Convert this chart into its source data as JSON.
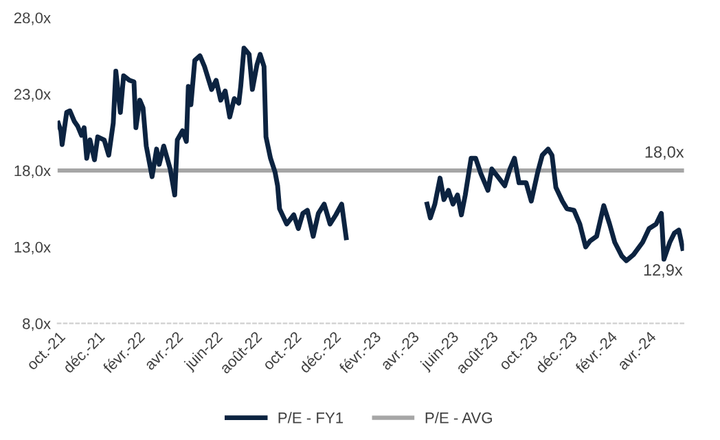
{
  "chart_data": {
    "type": "line",
    "series": [
      {
        "name": "P/E - FY1",
        "color": "#0c2340",
        "x": [
          "2021-10-01",
          "2021-10-05",
          "2021-10-07",
          "2021-10-14",
          "2021-10-19",
          "2021-10-26",
          "2021-10-31",
          "2021-11-06",
          "2021-11-10",
          "2021-11-14",
          "2021-11-19",
          "2021-11-26",
          "2021-12-01",
          "2021-12-11",
          "2021-12-18",
          "2021-12-25",
          "2021-12-29",
          "2022-01-05",
          "2022-01-10",
          "2022-01-19",
          "2022-01-26",
          "2022-01-29",
          "2022-02-04",
          "2022-02-09",
          "2022-02-14",
          "2022-02-23",
          "2022-03-02",
          "2022-03-06",
          "2022-03-13",
          "2022-03-23",
          "2022-03-30",
          "2022-04-03",
          "2022-04-11",
          "2022-04-17",
          "2022-04-20",
          "2022-04-24",
          "2022-04-30",
          "2022-05-08",
          "2022-05-15",
          "2022-05-26",
          "2022-06-02",
          "2022-06-09",
          "2022-06-16",
          "2022-06-23",
          "2022-06-30",
          "2022-07-07",
          "2022-07-10",
          "2022-07-15",
          "2022-07-23",
          "2022-07-28",
          "2022-08-04",
          "2022-08-09",
          "2022-08-15",
          "2022-08-18",
          "2022-08-25",
          "2022-09-01",
          "2022-09-05",
          "2022-09-08",
          "2022-09-19",
          "2022-09-30",
          "2022-10-07",
          "2022-10-14",
          "2022-10-21",
          "2022-10-30",
          "2022-11-07",
          "2022-11-16",
          "2022-11-25",
          "2022-12-04",
          "2022-12-13",
          "2022-12-20",
          "2023-02-15",
          "2023-04-24",
          "2023-04-29",
          "2023-05-06",
          "2023-05-14",
          "2023-05-20",
          "2023-05-27",
          "2023-06-03",
          "2023-06-10",
          "2023-06-16",
          "2023-06-22",
          "2023-07-01",
          "2023-07-08",
          "2023-07-16",
          "2023-07-27",
          "2023-08-02",
          "2023-08-13",
          "2023-08-22",
          "2023-08-30",
          "2023-09-06",
          "2023-09-13",
          "2023-09-24",
          "2023-10-02",
          "2023-10-12",
          "2023-10-19",
          "2023-10-28",
          "2023-11-03",
          "2023-11-09",
          "2023-11-19",
          "2023-11-26",
          "2023-12-07",
          "2023-12-16",
          "2023-12-25",
          "2024-01-01",
          "2024-01-11",
          "2024-01-22",
          "2024-01-31",
          "2024-02-08",
          "2024-02-19",
          "2024-02-26",
          "2024-03-08",
          "2024-03-22",
          "2024-04-01",
          "2024-04-12",
          "2024-04-20",
          "2024-04-24",
          "2024-05-03",
          "2024-05-10",
          "2024-05-17",
          "2024-05-23"
        ],
        "values": [
          21.1,
          20.6,
          19.7,
          21.8,
          21.9,
          21.2,
          20.9,
          20.3,
          20.8,
          18.8,
          20.0,
          18.7,
          20.2,
          20.0,
          19.0,
          21.1,
          24.5,
          21.8,
          24.2,
          23.9,
          23.8,
          20.8,
          22.6,
          22.1,
          19.6,
          17.6,
          19.4,
          18.4,
          19.6,
          18.1,
          16.4,
          20.0,
          20.6,
          19.9,
          23.5,
          22.3,
          25.2,
          25.5,
          24.8,
          23.3,
          23.9,
          22.6,
          23.2,
          21.5,
          22.7,
          22.4,
          23.5,
          26.0,
          25.6,
          23.3,
          24.9,
          25.6,
          24.8,
          20.2,
          18.8,
          17.9,
          17.0,
          15.5,
          14.5,
          15.1,
          14.2,
          15.2,
          15.4,
          13.7,
          15.2,
          15.8,
          14.5,
          15.1,
          15.8,
          13.6,
          null,
          15.8,
          14.9,
          15.8,
          17.5,
          16.1,
          16.7,
          15.8,
          16.4,
          15.1,
          16.4,
          18.8,
          18.8,
          17.8,
          16.7,
          18.1,
          17.5,
          17.0,
          18.1,
          18.8,
          17.2,
          17.2,
          16.0,
          17.9,
          19.0,
          19.4,
          19.0,
          16.9,
          16.0,
          15.5,
          15.4,
          14.5,
          13.0,
          13.4,
          13.7,
          15.7,
          14.5,
          13.3,
          12.4,
          12.1,
          12.5,
          13.3,
          14.2,
          14.5,
          15.2,
          12.2,
          13.3,
          13.9,
          14.1,
          12.9
        ]
      },
      {
        "name": "P/E - AVG",
        "color": "#a6a6a6",
        "x": [
          "2021-10-01",
          "2024-05-25"
        ],
        "values": [
          18.0,
          18.0
        ]
      }
    ],
    "annotations": [
      {
        "text": "18,0x",
        "x": "2024-05-25",
        "y": 18.0
      },
      {
        "text": "12,9x",
        "x": "2024-05-23",
        "y": 12.9
      }
    ],
    "xlim": [
      "2021-09-30",
      "2024-05-25"
    ],
    "xticks": [
      {
        "value": "2021-10-01",
        "label": "oct.-21"
      },
      {
        "value": "2021-12-01",
        "label": "déc.-21"
      },
      {
        "value": "2022-02-01",
        "label": "févr.-22"
      },
      {
        "value": "2022-04-01",
        "label": "avr.-22"
      },
      {
        "value": "2022-06-01",
        "label": "juin-22"
      },
      {
        "value": "2022-08-01",
        "label": "août-22"
      },
      {
        "value": "2022-10-01",
        "label": "oct.-22"
      },
      {
        "value": "2022-12-01",
        "label": "déc.-22"
      },
      {
        "value": "2023-02-01",
        "label": "févr.-23"
      },
      {
        "value": "2023-04-01",
        "label": "avr.-23"
      },
      {
        "value": "2023-06-01",
        "label": "juin-23"
      },
      {
        "value": "2023-08-01",
        "label": "août-23"
      },
      {
        "value": "2023-10-01",
        "label": "oct.-23"
      },
      {
        "value": "2023-12-01",
        "label": "déc.-23"
      },
      {
        "value": "2024-02-01",
        "label": "févr.-24"
      },
      {
        "value": "2024-04-01",
        "label": "avr.-24"
      }
    ],
    "ylim": [
      8,
      28
    ],
    "yticks": [
      {
        "value": 8,
        "label": "8,0x"
      },
      {
        "value": 13,
        "label": "13,0x"
      },
      {
        "value": 18,
        "label": "18,0x"
      },
      {
        "value": 23,
        "label": "23,0x"
      },
      {
        "value": 28,
        "label": "28,0x"
      }
    ],
    "legend": "bottom"
  }
}
